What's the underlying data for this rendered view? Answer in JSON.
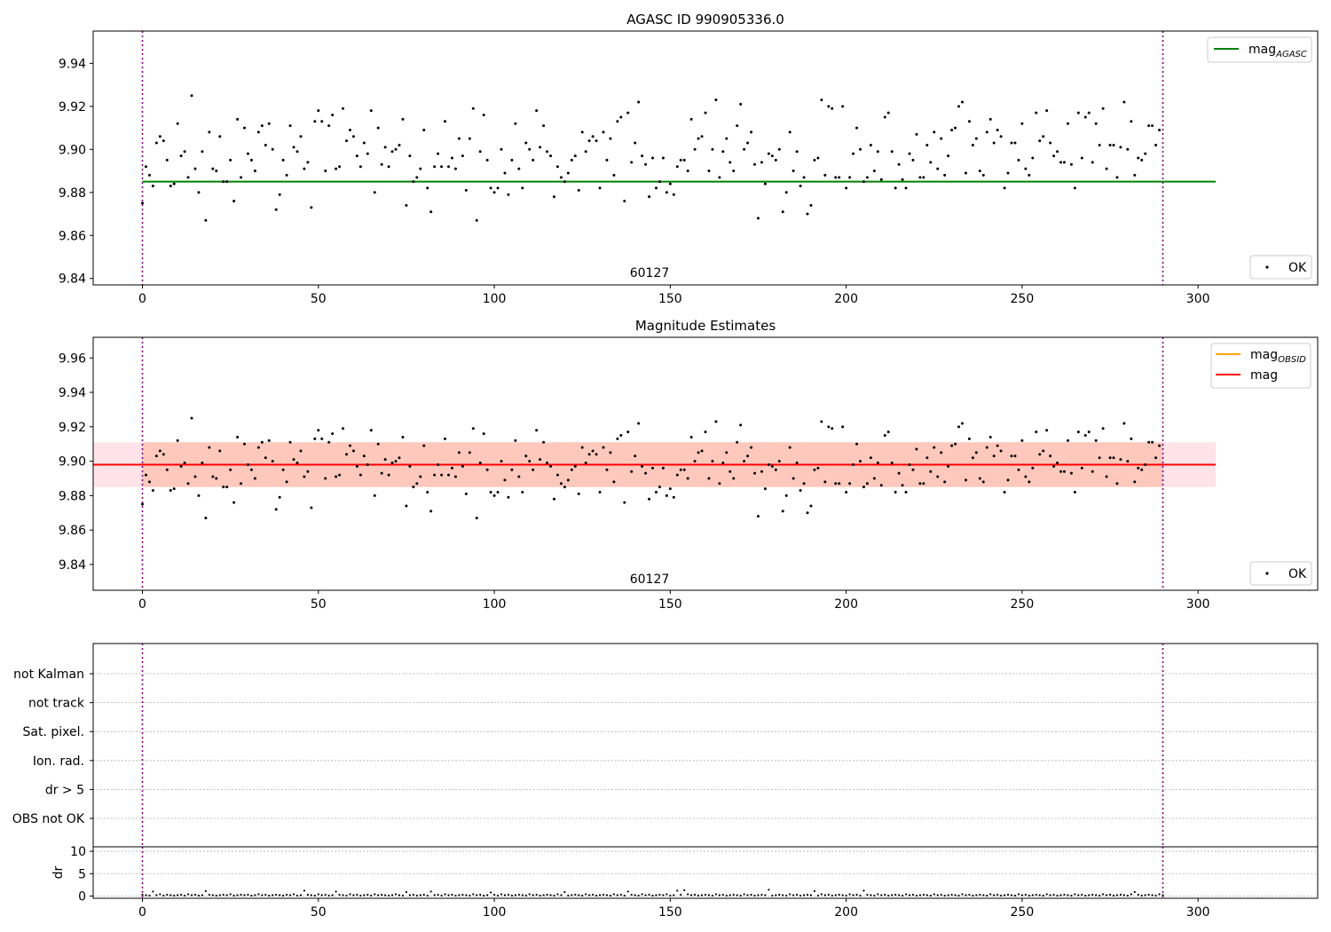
{
  "chart_data": [
    {
      "type": "scatter",
      "title": "AGASC ID 990905336.0",
      "xlim": [
        -14,
        334
      ],
      "ylim": [
        9.837,
        9.955
      ],
      "xticks": [
        0,
        50,
        100,
        150,
        200,
        250,
        300
      ],
      "yticks": [
        9.84,
        9.86,
        9.88,
        9.9,
        9.92,
        9.94
      ],
      "obsid_label": "60127",
      "obs_bounds": [
        0,
        290
      ],
      "ref_line": {
        "name": "mag",
        "sub": "AGASC",
        "value": 9.885,
        "x": [
          0,
          305
        ],
        "color": "#008000"
      },
      "points_legend": "OK",
      "grid": false
    },
    {
      "type": "scatter",
      "title": "Magnitude Estimates",
      "xlim": [
        -14,
        334
      ],
      "ylim": [
        9.825,
        9.972
      ],
      "xticks": [
        0,
        50,
        100,
        150,
        200,
        250,
        300
      ],
      "yticks": [
        9.84,
        9.86,
        9.88,
        9.9,
        9.92,
        9.94,
        9.96
      ],
      "obsid_label": "60127",
      "obs_bounds": [
        0,
        290
      ],
      "lines": [
        {
          "name": "mag",
          "sub": "OBSID",
          "value": 9.898,
          "x": [
            0,
            290
          ],
          "color": "#ffa500"
        },
        {
          "name": "mag",
          "sub": "",
          "value": 9.898,
          "x": [
            -14,
            305
          ],
          "color": "#ff0000"
        }
      ],
      "bands": [
        {
          "low": 9.885,
          "high": 9.911,
          "x": [
            -14,
            305
          ],
          "color": "#ffc0cb"
        },
        {
          "low": 9.885,
          "high": 9.911,
          "x": [
            0,
            290
          ],
          "color": "#ffa07a"
        }
      ],
      "points_legend": "OK",
      "grid": false
    },
    {
      "type": "flags",
      "xlim": [
        -14,
        334
      ],
      "categories": [
        "not Kalman",
        "not track",
        "Sat. pixel.",
        "Ion. rad.",
        "dr > 5",
        "OBS not OK"
      ],
      "obs_bounds": [
        0,
        290
      ],
      "grid": true
    },
    {
      "type": "scatter",
      "ylabel": "dr",
      "xlim": [
        -14,
        334
      ],
      "ylim": [
        -0.5,
        11
      ],
      "xticks": [
        0,
        50,
        100,
        150,
        200,
        250,
        300
      ],
      "yticks": [
        0,
        5,
        10
      ],
      "obs_bounds": [
        0,
        290
      ],
      "grid": true
    }
  ],
  "samples": {
    "x": [
      0,
      1,
      2,
      3,
      4,
      5,
      6,
      7,
      8,
      9,
      10,
      11,
      12,
      13,
      14,
      15,
      16,
      17,
      18,
      19,
      20,
      21,
      22,
      23,
      24,
      25,
      26,
      27,
      28,
      29,
      30,
      31,
      32,
      33,
      34,
      35,
      36,
      37,
      38,
      39,
      40,
      41,
      42,
      43,
      44,
      45,
      46,
      47,
      48,
      49,
      50,
      51,
      52,
      53,
      54,
      55,
      56,
      57,
      58,
      59,
      60,
      61,
      62,
      63,
      64,
      65,
      66,
      67,
      68,
      69,
      70,
      71,
      72,
      73,
      74,
      75,
      76,
      77,
      78,
      79,
      80,
      81,
      82,
      83,
      84,
      85,
      86,
      87,
      88,
      89,
      90,
      91,
      92,
      93,
      94,
      95,
      96,
      97,
      98,
      99,
      100,
      101,
      102,
      103,
      104,
      105,
      106,
      107,
      108,
      109,
      110,
      111,
      112,
      113,
      114,
      115,
      116,
      117,
      118,
      119,
      120,
      121,
      122,
      123,
      124,
      125,
      126,
      127,
      128,
      129,
      130,
      131,
      132,
      133,
      134,
      135,
      136,
      137,
      138,
      139,
      140,
      141,
      142,
      143,
      144,
      145,
      146,
      147,
      148,
      149,
      150,
      151,
      152,
      153,
      154,
      155,
      156,
      157,
      158,
      159,
      160,
      161,
      162,
      163,
      164,
      165,
      166,
      167,
      168,
      169,
      170,
      171,
      172,
      173,
      174,
      175,
      176,
      177,
      178,
      179,
      180,
      181,
      182,
      183,
      184,
      185,
      186,
      187,
      188,
      189,
      190,
      191,
      192,
      193,
      194,
      195,
      196,
      197,
      198,
      199,
      200,
      201,
      202,
      203,
      204,
      205,
      206,
      207,
      208,
      209,
      210,
      211,
      212,
      213,
      214,
      215,
      216,
      217,
      218,
      219,
      220,
      221,
      222,
      223,
      224,
      225,
      226,
      227,
      228,
      229,
      230,
      231,
      232,
      233,
      234,
      235,
      236,
      237,
      238,
      239,
      240,
      241,
      242,
      243,
      244,
      245,
      246,
      247,
      248,
      249,
      250,
      251,
      252,
      253,
      254,
      255,
      256,
      257,
      258,
      259,
      260,
      261,
      262,
      263,
      264,
      265,
      266,
      267,
      268,
      269,
      270,
      271,
      272,
      273,
      274,
      275,
      276,
      277,
      278,
      279,
      280,
      281,
      282,
      283,
      284,
      285,
      286,
      287,
      288,
      289,
      290
    ],
    "mag": [
      9.875,
      9.892,
      9.888,
      9.883,
      9.903,
      9.906,
      9.904,
      9.895,
      9.883,
      9.884,
      9.912,
      9.897,
      9.899,
      9.887,
      9.925,
      9.891,
      9.88,
      9.899,
      9.867,
      9.908,
      9.891,
      9.89,
      9.906,
      9.885,
      9.885,
      9.895,
      9.876,
      9.914,
      9.887,
      9.91,
      9.898,
      9.895,
      9.89,
      9.908,
      9.911,
      9.902,
      9.912,
      9.9,
      9.872,
      9.879,
      9.895,
      9.888,
      9.911,
      9.901,
      9.899,
      9.906,
      9.891,
      9.894,
      9.873,
      9.913,
      9.918,
      9.913,
      9.89,
      9.911,
      9.916,
      9.891,
      9.892,
      9.919,
      9.904,
      9.909,
      9.906,
      9.897,
      9.892,
      9.903,
      9.898,
      9.918,
      9.88,
      9.91,
      9.893,
      9.901,
      9.892,
      9.899,
      9.9,
      9.902,
      9.914,
      9.874,
      9.897,
      9.885,
      9.887,
      9.891,
      9.909,
      9.882,
      9.871,
      9.892,
      9.898,
      9.892,
      9.913,
      9.892,
      9.896,
      9.891,
      9.905,
      9.897,
      9.881,
      9.905,
      9.919,
      9.867,
      9.899,
      9.916,
      9.895,
      9.882,
      9.88,
      9.882,
      9.9,
      9.889,
      9.879,
      9.895,
      9.912,
      9.891,
      9.882,
      9.903,
      9.9,
      9.895,
      9.918,
      9.901,
      9.911,
      9.899,
      9.897,
      9.878,
      9.892,
      9.887,
      9.885,
      9.889,
      9.895,
      9.897,
      9.881,
      9.908,
      9.899,
      9.904,
      9.906,
      9.904,
      9.882,
      9.908,
      9.895,
      9.905,
      9.888,
      9.913,
      9.915,
      9.876,
      9.917,
      9.894,
      9.903,
      9.922,
      9.897,
      9.893,
      9.878,
      9.896,
      9.882,
      9.885,
      9.896,
      9.88,
      9.884,
      9.879,
      9.892,
      9.895,
      9.895,
      9.89,
      9.914,
      9.9,
      9.905,
      9.906,
      9.917,
      9.89,
      9.9,
      9.923,
      9.887,
      9.899,
      9.905,
      9.894,
      9.89,
      9.911,
      9.921,
      9.9,
      9.903,
      9.908,
      9.893,
      9.868,
      9.894,
      9.884,
      9.898,
      9.897,
      9.895,
      9.9,
      9.871,
      9.88,
      9.908,
      9.89,
      9.899,
      9.883,
      9.887,
      9.87,
      9.874,
      9.895,
      9.896,
      9.923,
      9.888,
      9.92,
      9.919,
      9.887,
      9.887,
      9.92,
      9.882,
      9.887,
      9.898,
      9.91,
      9.9,
      9.885,
      9.887,
      9.902,
      9.89,
      9.899,
      9.886,
      9.915,
      9.917,
      9.899,
      9.882,
      9.893,
      9.886,
      9.882,
      9.898,
      9.895,
      9.907,
      9.887,
      9.887,
      9.902,
      9.894,
      9.908,
      9.891,
      9.905,
      9.888,
      9.897,
      9.909,
      9.91,
      9.92,
      9.922,
      9.889,
      9.913,
      9.902,
      9.905,
      9.89,
      9.888,
      9.908,
      9.914,
      9.903,
      9.909,
      9.906,
      9.882,
      9.889,
      9.903,
      9.903,
      9.895,
      9.912,
      9.891,
      9.888,
      9.896,
      9.917,
      9.904,
      9.906,
      9.918,
      9.903,
      9.897,
      9.899,
      9.894,
      9.894,
      9.912,
      9.893,
      9.882,
      9.917,
      9.896,
      9.915,
      9.917,
      9.894,
      9.912,
      9.902,
      9.919,
      9.891,
      9.902,
      9.902,
      9.887,
      9.901,
      9.922,
      9.9,
      9.913,
      9.888,
      9.896,
      9.895,
      9.898,
      9.911,
      9.911,
      9.902,
      9.909
    ],
    "dr": [
      0.3,
      0.2,
      0.1,
      1.0,
      0.2,
      0.4,
      0.1,
      0.3,
      0.2,
      0.1,
      0.2,
      0.3,
      0.1,
      0.4,
      0.2,
      0.3,
      0.1,
      0.2,
      1.1,
      0.3,
      0.2,
      0.1,
      0.2,
      0.3,
      0.2,
      0.4,
      0.1,
      0.2,
      0.3,
      0.2,
      0.3,
      0.1,
      0.2,
      0.4,
      0.2,
      0.3,
      0.1,
      0.2,
      0.3,
      0.2,
      0.1,
      0.3,
      0.2,
      0.4,
      0.1,
      0.2,
      1.2,
      0.3,
      0.2,
      0.1,
      0.4,
      0.2,
      0.3,
      0.1,
      0.2,
      1.0,
      0.3,
      0.2,
      0.1,
      0.4,
      0.2,
      0.3,
      0.1,
      0.2,
      0.3,
      0.1,
      0.4,
      0.2,
      0.3,
      0.2,
      0.1,
      0.2,
      0.4,
      0.2,
      0.1,
      0.9,
      0.2,
      0.3,
      0.1,
      0.2,
      0.3,
      0.1,
      1.0,
      0.2,
      0.3,
      0.1,
      0.4,
      0.2,
      0.3,
      0.1,
      0.2,
      0.3,
      0.2,
      0.1,
      0.4,
      0.2,
      0.3,
      0.1,
      0.2,
      0.8,
      0.3,
      0.1,
      0.4,
      0.2,
      0.3,
      0.1,
      0.2,
      0.3,
      0.2,
      0.1,
      0.4,
      0.2,
      0.3,
      0.1,
      0.2,
      0.3,
      0.2,
      0.1,
      0.4,
      0.2,
      0.9,
      0.1,
      0.2,
      0.3,
      0.2,
      0.1,
      0.4,
      0.2,
      0.3,
      0.1,
      0.2,
      0.3,
      0.2,
      0.1,
      0.4,
      0.2,
      0.3,
      0.1,
      1.0,
      0.3,
      0.2,
      0.1,
      0.4,
      0.2,
      0.3,
      0.1,
      0.2,
      0.3,
      0.2,
      0.4,
      0.1,
      0.2,
      1.2,
      0.3,
      1.3,
      0.4,
      0.2,
      0.3,
      0.1,
      0.2,
      0.3,
      0.2,
      0.1,
      0.4,
      0.2,
      0.3,
      0.1,
      0.2,
      0.3,
      0.2,
      0.1,
      0.4,
      0.2,
      0.3,
      0.1,
      0.2,
      0.3,
      0.2,
      1.4,
      0.1,
      0.2,
      0.3,
      0.2,
      0.1,
      0.4,
      0.2,
      0.3,
      0.1,
      0.2,
      0.3,
      0.2,
      1.1,
      0.1,
      0.4,
      0.2,
      0.3,
      0.1,
      0.2,
      0.3,
      0.2,
      0.1,
      0.4,
      0.2,
      0.3,
      0.1,
      1.2,
      0.3,
      0.2,
      0.1,
      0.4,
      0.2,
      0.3,
      0.1,
      0.2,
      0.3,
      0.2,
      0.1,
      0.4,
      0.2,
      0.3,
      0.1,
      0.2,
      0.3,
      0.2,
      0.1,
      0.4,
      0.2,
      0.3,
      0.1,
      0.2,
      0.3,
      0.2,
      0.1,
      0.4,
      0.2,
      0.3,
      0.1,
      0.2,
      0.3,
      0.2,
      0.1,
      0.4,
      0.2,
      0.3,
      0.1,
      0.2,
      0.3,
      0.2,
      0.1,
      0.4,
      0.2,
      0.3,
      0.1,
      0.2,
      0.3,
      0.2,
      0.1,
      0.4,
      0.2,
      0.3,
      0.1,
      0.2,
      0.3,
      0.2,
      0.1,
      0.4,
      0.2,
      0.3,
      0.1,
      0.2,
      0.3,
      0.2,
      0.1,
      0.4,
      0.2,
      0.3,
      0.1,
      0.2,
      0.3,
      0.2,
      0.1,
      0.4,
      0.9,
      0.3,
      0.1,
      0.2,
      0.3,
      0.2,
      0.1,
      0.4,
      0.2,
      0.3
    ]
  }
}
